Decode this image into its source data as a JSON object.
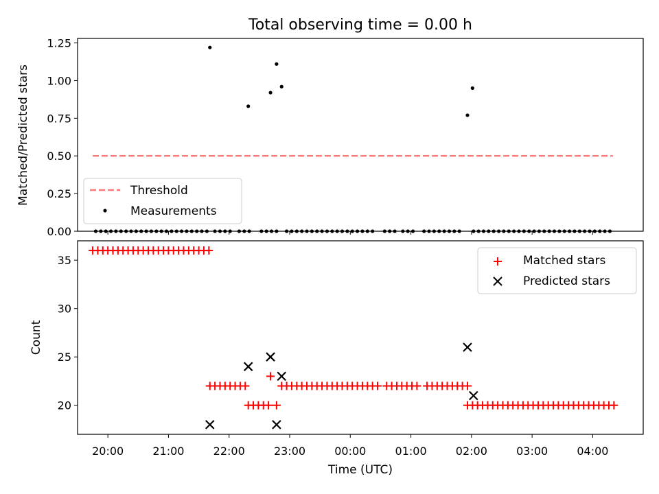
{
  "chart_data": [
    {
      "type": "scatter",
      "title": "Total observing time = 0.00 h",
      "xlabel": "",
      "ylabel": "Matched/Predicted stars",
      "ylim": [
        0.0,
        1.28
      ],
      "xlim": [
        "19:30",
        "04:50"
      ],
      "yticks": [
        "0.00",
        "0.25",
        "0.50",
        "0.75",
        "1.00",
        "1.25"
      ],
      "legend_placement": "lower-left",
      "colors": {
        "threshold": "#ff7777",
        "measurements": "#000000"
      },
      "threshold": {
        "name": "Threshold",
        "value": 0.5,
        "x_range": [
          "19:45",
          "04:20"
        ]
      },
      "measurements": {
        "name": "Measurements",
        "points": [
          [
            "19:48",
            0
          ],
          [
            "19:53",
            0
          ],
          [
            "19:58",
            0
          ],
          [
            "20:03",
            0
          ],
          [
            "20:08",
            0
          ],
          [
            "20:13",
            0
          ],
          [
            "20:18",
            0
          ],
          [
            "20:23",
            0
          ],
          [
            "20:28",
            0
          ],
          [
            "20:33",
            0
          ],
          [
            "20:38",
            0
          ],
          [
            "20:43",
            0
          ],
          [
            "20:48",
            0
          ],
          [
            "20:53",
            0
          ],
          [
            "20:58",
            0
          ],
          [
            "21:03",
            0
          ],
          [
            "21:08",
            0
          ],
          [
            "21:13",
            0
          ],
          [
            "21:18",
            0
          ],
          [
            "21:23",
            0
          ],
          [
            "21:28",
            0
          ],
          [
            "21:33",
            0
          ],
          [
            "21:38",
            0
          ],
          [
            "21:41",
            1.22
          ],
          [
            "21:46",
            0
          ],
          [
            "21:51",
            0
          ],
          [
            "21:56",
            0
          ],
          [
            "22:01",
            0
          ],
          [
            "22:10",
            0
          ],
          [
            "22:15",
            0
          ],
          [
            "22:20",
            0
          ],
          [
            "22:19",
            0.83
          ],
          [
            "22:32",
            0
          ],
          [
            "22:37",
            0
          ],
          [
            "22:42",
            0
          ],
          [
            "22:47",
            0
          ],
          [
            "22:41",
            0.92
          ],
          [
            "22:47",
            1.11
          ],
          [
            "22:52",
            0.96
          ],
          [
            "22:57",
            0
          ],
          [
            "23:02",
            0
          ],
          [
            "23:07",
            0
          ],
          [
            "23:12",
            0
          ],
          [
            "23:17",
            0
          ],
          [
            "23:22",
            0
          ],
          [
            "23:27",
            0
          ],
          [
            "23:32",
            0
          ],
          [
            "23:37",
            0
          ],
          [
            "23:42",
            0
          ],
          [
            "23:47",
            0
          ],
          [
            "23:52",
            0
          ],
          [
            "23:57",
            0
          ],
          [
            "00:02",
            0
          ],
          [
            "00:07",
            0
          ],
          [
            "00:12",
            0
          ],
          [
            "00:17",
            0
          ],
          [
            "00:22",
            0
          ],
          [
            "00:34",
            0
          ],
          [
            "00:39",
            0
          ],
          [
            "00:44",
            0
          ],
          [
            "00:52",
            0
          ],
          [
            "00:57",
            0
          ],
          [
            "01:02",
            0
          ],
          [
            "01:13",
            0
          ],
          [
            "01:18",
            0
          ],
          [
            "01:23",
            0
          ],
          [
            "01:28",
            0
          ],
          [
            "01:33",
            0
          ],
          [
            "01:38",
            0
          ],
          [
            "01:43",
            0
          ],
          [
            "01:48",
            0
          ],
          [
            "01:56",
            0.77
          ],
          [
            "02:01",
            0.95
          ],
          [
            "02:02",
            0
          ],
          [
            "02:07",
            0
          ],
          [
            "02:12",
            0
          ],
          [
            "02:17",
            0
          ],
          [
            "02:22",
            0
          ],
          [
            "02:27",
            0
          ],
          [
            "02:32",
            0
          ],
          [
            "02:37",
            0
          ],
          [
            "02:42",
            0
          ],
          [
            "02:47",
            0
          ],
          [
            "02:52",
            0
          ],
          [
            "02:57",
            0
          ],
          [
            "03:02",
            0
          ],
          [
            "03:07",
            0
          ],
          [
            "03:12",
            0
          ],
          [
            "03:17",
            0
          ],
          [
            "03:22",
            0
          ],
          [
            "03:27",
            0
          ],
          [
            "03:32",
            0
          ],
          [
            "03:37",
            0
          ],
          [
            "03:42",
            0
          ],
          [
            "03:47",
            0
          ],
          [
            "03:52",
            0
          ],
          [
            "03:57",
            0
          ],
          [
            "04:02",
            0
          ],
          [
            "04:07",
            0
          ],
          [
            "04:12",
            0
          ],
          [
            "04:17",
            0
          ]
        ]
      }
    },
    {
      "type": "scatter",
      "title": "",
      "xlabel": "Time (UTC)",
      "ylabel": "Count",
      "ylim": [
        17,
        37
      ],
      "xlim": [
        "19:30",
        "04:50"
      ],
      "yticks": [
        "20",
        "25",
        "30",
        "35"
      ],
      "xticks": [
        "20:00",
        "21:00",
        "22:00",
        "23:00",
        "00:00",
        "01:00",
        "02:00",
        "03:00",
        "04:00"
      ],
      "legend_placement": "upper-right",
      "colors": {
        "matched": "#ff0000",
        "predicted": "#000000"
      },
      "series": [
        {
          "name": "Matched stars",
          "marker": "+",
          "points": [
            [
              "19:45",
              36
            ],
            [
              "19:50",
              36
            ],
            [
              "19:55",
              36
            ],
            [
              "20:00",
              36
            ],
            [
              "20:05",
              36
            ],
            [
              "20:10",
              36
            ],
            [
              "20:15",
              36
            ],
            [
              "20:20",
              36
            ],
            [
              "20:25",
              36
            ],
            [
              "20:30",
              36
            ],
            [
              "20:35",
              36
            ],
            [
              "20:40",
              36
            ],
            [
              "20:45",
              36
            ],
            [
              "20:50",
              36
            ],
            [
              "20:55",
              36
            ],
            [
              "21:00",
              36
            ],
            [
              "21:05",
              36
            ],
            [
              "21:10",
              36
            ],
            [
              "21:15",
              36
            ],
            [
              "21:20",
              36
            ],
            [
              "21:25",
              36
            ],
            [
              "21:30",
              36
            ],
            [
              "21:35",
              36
            ],
            [
              "21:40",
              36
            ],
            [
              "21:41",
              22
            ],
            [
              "21:46",
              22
            ],
            [
              "21:51",
              22
            ],
            [
              "21:56",
              22
            ],
            [
              "22:01",
              22
            ],
            [
              "22:06",
              22
            ],
            [
              "22:11",
              22
            ],
            [
              "22:16",
              22
            ],
            [
              "22:19",
              20
            ],
            [
              "22:24",
              20
            ],
            [
              "22:29",
              20
            ],
            [
              "22:34",
              20
            ],
            [
              "22:39",
              20
            ],
            [
              "22:41",
              23
            ],
            [
              "22:47",
              20
            ],
            [
              "22:52",
              22
            ],
            [
              "22:57",
              22
            ],
            [
              "23:02",
              22
            ],
            [
              "23:07",
              22
            ],
            [
              "23:12",
              22
            ],
            [
              "23:17",
              22
            ],
            [
              "23:22",
              22
            ],
            [
              "23:27",
              22
            ],
            [
              "23:32",
              22
            ],
            [
              "23:37",
              22
            ],
            [
              "23:42",
              22
            ],
            [
              "23:47",
              22
            ],
            [
              "23:52",
              22
            ],
            [
              "23:57",
              22
            ],
            [
              "00:02",
              22
            ],
            [
              "00:07",
              22
            ],
            [
              "00:12",
              22
            ],
            [
              "00:17",
              22
            ],
            [
              "00:22",
              22
            ],
            [
              "00:27",
              22
            ],
            [
              "00:36",
              22
            ],
            [
              "00:41",
              22
            ],
            [
              "00:46",
              22
            ],
            [
              "00:51",
              22
            ],
            [
              "00:56",
              22
            ],
            [
              "01:01",
              22
            ],
            [
              "01:06",
              22
            ],
            [
              "01:16",
              22
            ],
            [
              "01:21",
              22
            ],
            [
              "01:26",
              22
            ],
            [
              "01:31",
              22
            ],
            [
              "01:36",
              22
            ],
            [
              "01:41",
              22
            ],
            [
              "01:46",
              22
            ],
            [
              "01:51",
              22
            ],
            [
              "01:56",
              22
            ],
            [
              "01:56",
              20
            ],
            [
              "02:01",
              20
            ],
            [
              "02:06",
              20
            ],
            [
              "02:11",
              20
            ],
            [
              "02:16",
              20
            ],
            [
              "02:21",
              20
            ],
            [
              "02:26",
              20
            ],
            [
              "02:31",
              20
            ],
            [
              "02:36",
              20
            ],
            [
              "02:41",
              20
            ],
            [
              "02:46",
              20
            ],
            [
              "02:51",
              20
            ],
            [
              "02:56",
              20
            ],
            [
              "03:01",
              20
            ],
            [
              "03:06",
              20
            ],
            [
              "03:11",
              20
            ],
            [
              "03:16",
              20
            ],
            [
              "03:21",
              20
            ],
            [
              "03:26",
              20
            ],
            [
              "03:31",
              20
            ],
            [
              "03:36",
              20
            ],
            [
              "03:41",
              20
            ],
            [
              "03:46",
              20
            ],
            [
              "03:51",
              20
            ],
            [
              "03:56",
              20
            ],
            [
              "04:01",
              20
            ],
            [
              "04:06",
              20
            ],
            [
              "04:11",
              20
            ],
            [
              "04:16",
              20
            ],
            [
              "04:21",
              20
            ]
          ]
        },
        {
          "name": "Predicted stars",
          "marker": "x",
          "points": [
            [
              "21:41",
              18
            ],
            [
              "22:19",
              24
            ],
            [
              "22:41",
              25
            ],
            [
              "22:47",
              18
            ],
            [
              "22:52",
              23
            ],
            [
              "01:56",
              26
            ],
            [
              "02:02",
              21
            ]
          ]
        }
      ]
    }
  ]
}
